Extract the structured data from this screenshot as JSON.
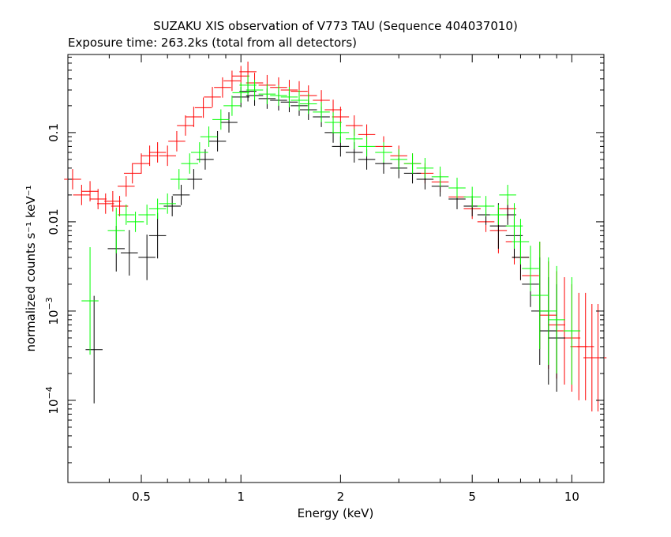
{
  "title": "SUZAKU XIS observation of V773 TAU (Sequence 404037010)",
  "subtitle": "Exposure time: 263.2ks (total from all detectors)",
  "chart_data": {
    "type": "scatter",
    "title": "SUZAKU XIS observation of V773 TAU (Sequence 404037010)",
    "subtitle": "Exposure time: 263.2ks (total from all detectors)",
    "xlabel": "Energy (keV)",
    "ylabel": "normalized counts s⁻¹ keV⁻¹",
    "x_scale": "log",
    "y_scale": "log",
    "xlim": [
      0.3,
      12.5
    ],
    "ylim": [
      1.2e-05,
      0.75
    ],
    "x_ticks": [
      {
        "value": 0.5,
        "label": "0.5"
      },
      {
        "value": 1,
        "label": "1"
      },
      {
        "value": 2,
        "label": "2"
      },
      {
        "value": 5,
        "label": "5"
      },
      {
        "value": 10,
        "label": "10"
      }
    ],
    "y_ticks": [
      {
        "value": 0.1,
        "base": "0.1",
        "exp": ""
      },
      {
        "value": 0.01,
        "base": "0.01",
        "exp": ""
      },
      {
        "value": 0.001,
        "base": "10",
        "exp": "−3"
      },
      {
        "value": 0.0001,
        "base": "10",
        "exp": "−4"
      }
    ],
    "grid": false,
    "legend": "none",
    "series": [
      {
        "color": "#ff0000",
        "points": [
          [
            0.31,
            0.03
          ],
          [
            0.33,
            0.02
          ],
          [
            0.35,
            0.022
          ],
          [
            0.37,
            0.018
          ],
          [
            0.39,
            0.016
          ],
          [
            0.41,
            0.017
          ],
          [
            0.43,
            0.015
          ],
          [
            0.45,
            0.025
          ],
          [
            0.47,
            0.035
          ],
          [
            0.5,
            0.045
          ],
          [
            0.53,
            0.055
          ],
          [
            0.56,
            0.06
          ],
          [
            0.6,
            0.055
          ],
          [
            0.64,
            0.08
          ],
          [
            0.68,
            0.12
          ],
          [
            0.72,
            0.15
          ],
          [
            0.77,
            0.19
          ],
          [
            0.82,
            0.25
          ],
          [
            0.88,
            0.32
          ],
          [
            0.94,
            0.38
          ],
          [
            1.0,
            0.43
          ],
          [
            1.05,
            0.48
          ],
          [
            1.1,
            0.36
          ],
          [
            1.2,
            0.34
          ],
          [
            1.3,
            0.32
          ],
          [
            1.4,
            0.3
          ],
          [
            1.5,
            0.29
          ],
          [
            1.6,
            0.26
          ],
          [
            1.75,
            0.23
          ],
          [
            1.9,
            0.18
          ],
          [
            2.0,
            0.15
          ],
          [
            2.2,
            0.12
          ],
          [
            2.4,
            0.095
          ],
          [
            2.7,
            0.07
          ],
          [
            3.0,
            0.055
          ],
          [
            3.3,
            0.045
          ],
          [
            3.6,
            0.035
          ],
          [
            4.0,
            0.028
          ],
          [
            4.5,
            0.019
          ],
          [
            5.0,
            0.014
          ],
          [
            5.5,
            0.01
          ],
          [
            6.0,
            0.008
          ],
          [
            6.4,
            0.014
          ],
          [
            6.7,
            0.006
          ],
          [
            7.0,
            0.004
          ],
          [
            7.5,
            0.0025
          ],
          [
            8.0,
            0.0015
          ],
          [
            8.5,
            0.0009
          ],
          [
            9.0,
            0.0007
          ],
          [
            9.5,
            0.0006
          ],
          [
            10.0,
            0.0005
          ],
          [
            10.5,
            0.0004
          ],
          [
            11.0,
            0.0004
          ],
          [
            11.5,
            0.0003
          ],
          [
            12.0,
            0.0003
          ]
        ]
      },
      {
        "color": "#000000",
        "points": [
          [
            0.36,
            0.00037
          ],
          [
            0.42,
            0.005
          ],
          [
            0.46,
            0.0045
          ],
          [
            0.52,
            0.004
          ],
          [
            0.56,
            0.007
          ],
          [
            0.62,
            0.015
          ],
          [
            0.66,
            0.02
          ],
          [
            0.72,
            0.03
          ],
          [
            0.78,
            0.05
          ],
          [
            0.85,
            0.08
          ],
          [
            0.92,
            0.13
          ],
          [
            1.0,
            0.25
          ],
          [
            1.05,
            0.29
          ],
          [
            1.1,
            0.26
          ],
          [
            1.2,
            0.24
          ],
          [
            1.3,
            0.23
          ],
          [
            1.4,
            0.22
          ],
          [
            1.5,
            0.2
          ],
          [
            1.6,
            0.18
          ],
          [
            1.75,
            0.15
          ],
          [
            1.9,
            0.1
          ],
          [
            2.0,
            0.07
          ],
          [
            2.2,
            0.06
          ],
          [
            2.4,
            0.05
          ],
          [
            2.7,
            0.045
          ],
          [
            3.0,
            0.04
          ],
          [
            3.3,
            0.035
          ],
          [
            3.6,
            0.03
          ],
          [
            4.0,
            0.025
          ],
          [
            4.5,
            0.018
          ],
          [
            5.0,
            0.015
          ],
          [
            5.5,
            0.012
          ],
          [
            6.0,
            0.009
          ],
          [
            6.4,
            0.012
          ],
          [
            6.7,
            0.007
          ],
          [
            7.0,
            0.004
          ],
          [
            7.5,
            0.002
          ],
          [
            8.0,
            0.001
          ],
          [
            8.5,
            0.0006
          ],
          [
            9.0,
            0.0005
          ]
        ]
      },
      {
        "color": "#00ff00",
        "points": [
          [
            0.35,
            0.0013
          ],
          [
            0.42,
            0.008
          ],
          [
            0.45,
            0.012
          ],
          [
            0.48,
            0.01
          ],
          [
            0.52,
            0.012
          ],
          [
            0.56,
            0.014
          ],
          [
            0.6,
            0.016
          ],
          [
            0.65,
            0.03
          ],
          [
            0.7,
            0.045
          ],
          [
            0.75,
            0.06
          ],
          [
            0.8,
            0.09
          ],
          [
            0.87,
            0.14
          ],
          [
            0.94,
            0.2
          ],
          [
            1.0,
            0.28
          ],
          [
            1.05,
            0.34
          ],
          [
            1.1,
            0.3
          ],
          [
            1.2,
            0.27
          ],
          [
            1.3,
            0.26
          ],
          [
            1.4,
            0.25
          ],
          [
            1.5,
            0.23
          ],
          [
            1.6,
            0.21
          ],
          [
            1.75,
            0.17
          ],
          [
            1.9,
            0.13
          ],
          [
            2.0,
            0.1
          ],
          [
            2.2,
            0.085
          ],
          [
            2.4,
            0.07
          ],
          [
            2.7,
            0.06
          ],
          [
            3.0,
            0.05
          ],
          [
            3.3,
            0.045
          ],
          [
            3.6,
            0.04
          ],
          [
            4.0,
            0.032
          ],
          [
            4.5,
            0.024
          ],
          [
            5.0,
            0.019
          ],
          [
            5.5,
            0.015
          ],
          [
            6.0,
            0.012
          ],
          [
            6.4,
            0.02
          ],
          [
            6.7,
            0.009
          ],
          [
            7.0,
            0.006
          ],
          [
            7.5,
            0.003
          ],
          [
            8.0,
            0.0015
          ],
          [
            8.5,
            0.001
          ],
          [
            9.0,
            0.0008
          ],
          [
            10.0,
            0.0006
          ]
        ]
      }
    ]
  }
}
